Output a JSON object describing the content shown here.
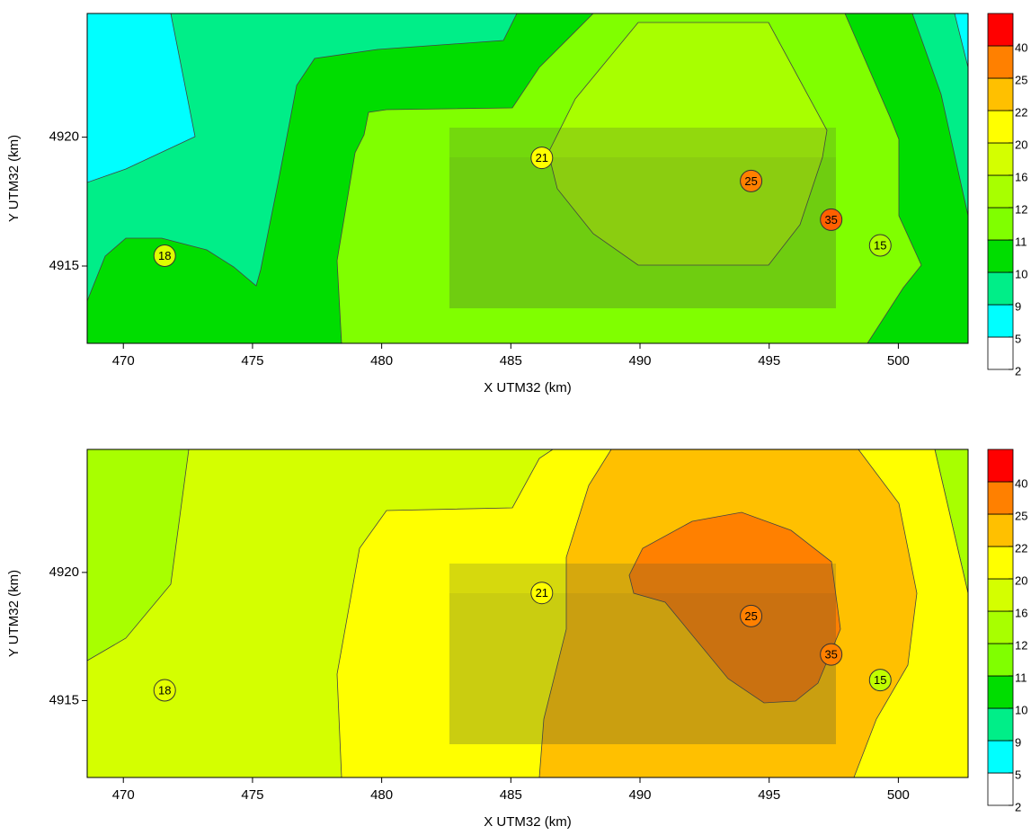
{
  "chart_data": [
    {
      "type": "contour",
      "xlabel": "X UTM32 (km)",
      "ylabel": "Y UTM32 (km)",
      "xlim": [
        468.6,
        502.7
      ],
      "ylim": [
        4912,
        4924.8
      ],
      "xticks": [
        470,
        475,
        480,
        485,
        490,
        495,
        500
      ],
      "yticks": [
        4915,
        4920
      ],
      "colorbar": {
        "levels": [
          2,
          5,
          9,
          10,
          11,
          12,
          16,
          20,
          22,
          25,
          40
        ],
        "colors": [
          "#ffffff",
          "#00ffff",
          "#00ee88",
          "#00dd00",
          "#80ff00",
          "#a8ff00",
          "#d4ff00",
          "#ffff00",
          "#ffc000",
          "#ff8000",
          "#ff0000"
        ]
      },
      "stations": [
        {
          "x": 471.6,
          "y": 4915.4,
          "value": 18,
          "color": "#ddff00"
        },
        {
          "x": 486.2,
          "y": 4919.2,
          "value": 21,
          "color": "#ffff00"
        },
        {
          "x": 494.3,
          "y": 4918.3,
          "value": 25,
          "color": "#ff8000"
        },
        {
          "x": 497.4,
          "y": 4916.8,
          "value": 35,
          "color": "#ff6000"
        },
        {
          "x": 499.3,
          "y": 4915.8,
          "value": 15,
          "color": "#b0ff00"
        }
      ]
    },
    {
      "type": "contour",
      "xlabel": "X UTM32 (km)",
      "ylabel": "Y UTM32 (km)",
      "xlim": [
        468.6,
        502.7
      ],
      "ylim": [
        4912,
        4924.8
      ],
      "xticks": [
        470,
        475,
        480,
        485,
        490,
        495,
        500
      ],
      "yticks": [
        4915,
        4920
      ],
      "colorbar": {
        "levels": [
          2,
          5,
          9,
          10,
          11,
          12,
          16,
          20,
          22,
          25,
          40
        ],
        "colors": [
          "#ffffff",
          "#00ffff",
          "#00ee88",
          "#00dd00",
          "#80ff00",
          "#a8ff00",
          "#d4ff00",
          "#ffff00",
          "#ffc000",
          "#ff8000",
          "#ff0000"
        ]
      },
      "stations": [
        {
          "x": 471.6,
          "y": 4915.4,
          "value": 18,
          "color": "#e4ff00"
        },
        {
          "x": 486.2,
          "y": 4919.2,
          "value": 21,
          "color": "#ffff00"
        },
        {
          "x": 494.3,
          "y": 4918.3,
          "value": 25,
          "color": "#ff8000"
        },
        {
          "x": 497.4,
          "y": 4916.8,
          "value": 35,
          "color": "#ff8000"
        },
        {
          "x": 499.3,
          "y": 4915.8,
          "value": 15,
          "color": "#c0ff00"
        }
      ]
    }
  ]
}
